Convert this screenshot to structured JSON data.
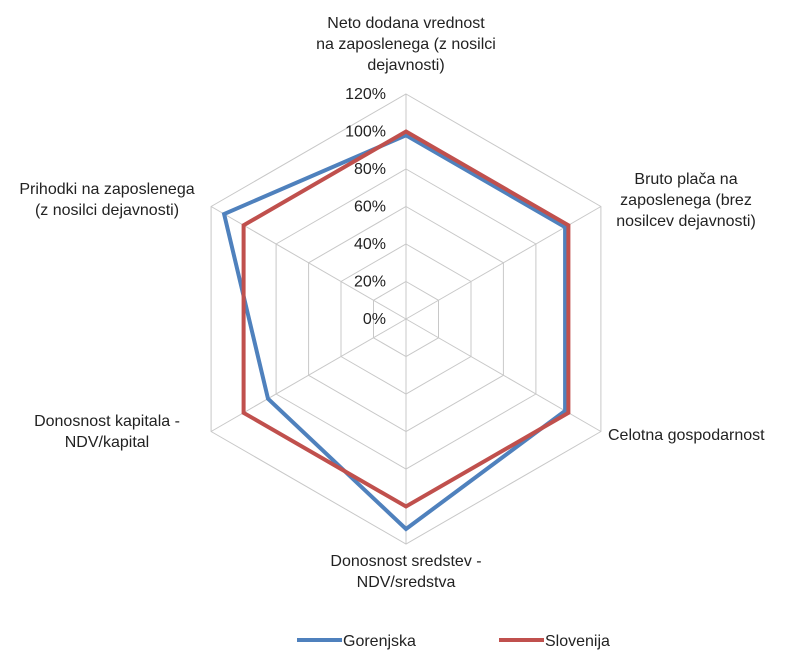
{
  "chart_data": {
    "type": "radar",
    "axes": [
      "Neto dodana vrednost na zaposlenega (z nosilci dejavnosti)",
      "Bruto plača na zaposlenega (brez nosilcev dejavnosti)",
      "Celotna gospodarnost",
      "Donosnost sredstev - NDV/sredstva",
      "Donosnost kapitala - NDV/kapital",
      "Prihodki na zaposlenega (z nosilci dejavnosti)"
    ],
    "axis_label_lines": [
      [
        "Neto dodana vrednost",
        "na zaposlenega (z nosilci",
        "dejavnosti)"
      ],
      [
        "Bruto plača na",
        "zaposlenega (brez",
        "nosilcev dejavnosti)"
      ],
      [
        "Celotna gospodarnost"
      ],
      [
        "Donosnost sredstev -",
        "NDV/sredstva"
      ],
      [
        "Donosnost kapitala -",
        "NDV/kapital"
      ],
      [
        "Prihodki na zaposlenega",
        "(z nosilci dejavnosti)"
      ]
    ],
    "range": [
      0,
      120
    ],
    "ticks": [
      "0%",
      "20%",
      "40%",
      "60%",
      "80%",
      "100%",
      "120%"
    ],
    "tick_values": [
      0,
      20,
      40,
      60,
      80,
      100,
      120
    ],
    "series": [
      {
        "name": "Gorenjska",
        "color": "#4f81bd",
        "values": [
          98,
          98,
          98,
          112,
          85,
          112
        ]
      },
      {
        "name": "Slovenija",
        "color": "#c0504d",
        "values": [
          100,
          100,
          100,
          100,
          100,
          100
        ]
      }
    ],
    "legend_position": "bottom",
    "grid": true
  }
}
